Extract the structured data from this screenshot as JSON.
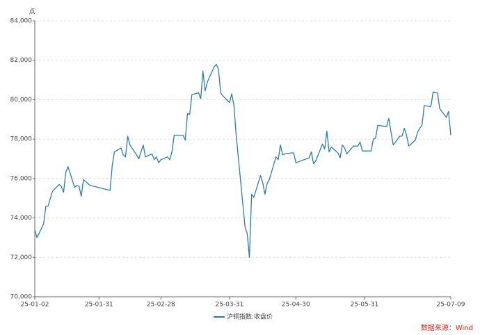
{
  "chart_data": {
    "type": "line",
    "y_label": "点",
    "source": "数据来源：Wind",
    "x": [
      "25-01-02",
      "25-01-03",
      "25-01-06",
      "25-01-07",
      "25-01-08",
      "25-01-10",
      "25-01-13",
      "25-01-14",
      "25-01-15",
      "25-01-16",
      "25-01-17",
      "25-01-20",
      "25-01-21",
      "25-01-22",
      "25-01-23",
      "25-01-24",
      "25-01-27",
      "25-02-05",
      "25-02-06",
      "25-02-07",
      "25-02-10",
      "25-02-11",
      "25-02-12",
      "25-02-13",
      "25-02-14",
      "25-02-17",
      "25-02-18",
      "25-02-19",
      "25-02-20",
      "25-02-21",
      "25-02-24",
      "25-02-25",
      "25-02-26",
      "25-02-27",
      "25-02-28",
      "25-03-03",
      "25-03-04",
      "25-03-05",
      "25-03-06",
      "25-03-07",
      "25-03-10",
      "25-03-11",
      "25-03-12",
      "25-03-13",
      "25-03-14",
      "25-03-17",
      "25-03-18",
      "25-03-19",
      "25-03-20",
      "25-03-21",
      "25-03-24",
      "25-03-25",
      "25-03-26",
      "25-03-27",
      "25-03-28",
      "25-03-31",
      "25-04-01",
      "25-04-02",
      "25-04-03",
      "25-04-07",
      "25-04-08",
      "25-04-09",
      "25-04-10",
      "25-04-11",
      "25-04-14",
      "25-04-15",
      "25-04-16",
      "25-04-17",
      "25-04-18",
      "25-04-21",
      "25-04-22",
      "25-04-23",
      "25-04-24",
      "25-04-25",
      "25-04-28",
      "25-04-29",
      "25-04-30",
      "25-05-06",
      "25-05-07",
      "25-05-08",
      "25-05-09",
      "25-05-12",
      "25-05-13",
      "25-05-14",
      "25-05-15",
      "25-05-16",
      "25-05-19",
      "25-05-20",
      "25-05-21",
      "25-05-22",
      "25-05-23",
      "25-05-26",
      "25-05-27",
      "25-05-28",
      "25-05-29",
      "25-05-30",
      "25-06-03",
      "25-06-04",
      "25-06-05",
      "25-06-06",
      "25-06-09",
      "25-06-10",
      "25-06-11",
      "25-06-12",
      "25-06-13",
      "25-06-16",
      "25-06-17",
      "25-06-18",
      "25-06-19",
      "25-06-20",
      "25-06-23",
      "25-06-24",
      "25-06-25",
      "25-06-26",
      "25-06-27",
      "25-06-30",
      "25-07-01",
      "25-07-02",
      "25-07-03",
      "25-07-04",
      "25-07-07",
      "25-07-08",
      "25-07-09"
    ],
    "series": [
      {
        "name": "沪铜指数:收盘价",
        "color": "#2b7bb0",
        "values": [
          73400,
          73000,
          73700,
          74600,
          74600,
          75350,
          75700,
          75600,
          75300,
          76300,
          76600,
          75550,
          75650,
          75600,
          75100,
          75950,
          75650,
          75400,
          76650,
          77350,
          77550,
          77200,
          77100,
          78150,
          77700,
          77200,
          77000,
          77350,
          77700,
          77100,
          77250,
          76950,
          77100,
          76800,
          76950,
          77100,
          76950,
          77350,
          78200,
          78200,
          78200,
          77950,
          79300,
          79250,
          80250,
          80350,
          80050,
          81450,
          80450,
          80900,
          81650,
          81800,
          81550,
          80350,
          80200,
          79850,
          80300,
          79700,
          78200,
          73550,
          73200,
          72000,
          75200,
          75050,
          76150,
          75800,
          75200,
          75750,
          75950,
          77100,
          76950,
          77700,
          77200,
          77250,
          77300,
          77300,
          76800,
          77050,
          77350,
          76750,
          76900,
          77750,
          77500,
          78400,
          77350,
          77600,
          77300,
          77050,
          77700,
          77550,
          77250,
          77650,
          77650,
          77650,
          77850,
          77400,
          77400,
          78000,
          78050,
          78700,
          78650,
          78650,
          79050,
          78350,
          77700,
          78150,
          78150,
          78550,
          78200,
          77650,
          77950,
          78350,
          78550,
          78700,
          79700,
          79650,
          80400,
          80350,
          80350,
          79550,
          79100,
          79400,
          78200
        ]
      }
    ],
    "xlim": [
      "25-01-02",
      "25-07-09"
    ],
    "xticks": [
      "25-01-02",
      "25-01-31",
      "25-02-28",
      "25-03-31",
      "25-04-30",
      "25-05-31",
      "25-07-09"
    ],
    "ylim": [
      70000,
      84000
    ],
    "yticks": [
      {
        "value": 70000,
        "label": "70,000"
      },
      {
        "value": 72000,
        "label": "72,000"
      },
      {
        "value": 74000,
        "label": "74,000"
      },
      {
        "value": 76000,
        "label": "76,000"
      },
      {
        "value": 78000,
        "label": "78,000"
      },
      {
        "value": 80000,
        "label": "80,000"
      },
      {
        "value": 82000,
        "label": "82,000"
      },
      {
        "value": 84000,
        "label": "84,000"
      }
    ],
    "grid": true
  }
}
